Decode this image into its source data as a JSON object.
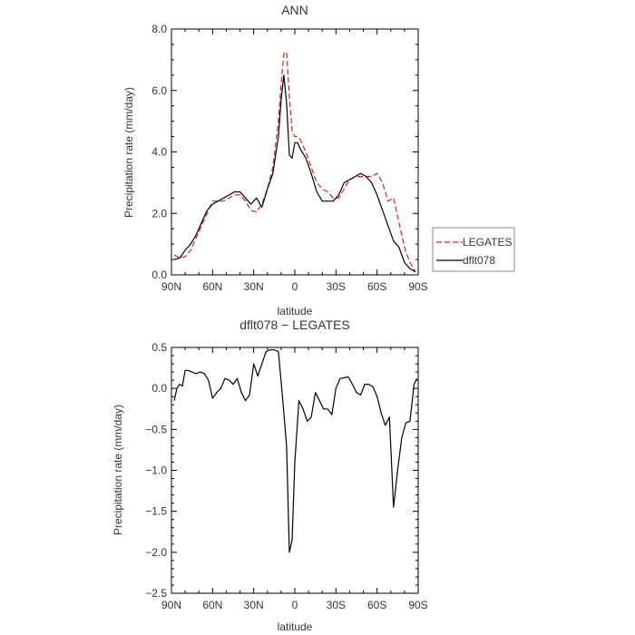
{
  "chart_data": [
    {
      "type": "line",
      "title": "ANN",
      "xlabel": "latitude",
      "ylabel": "Precipitation rate (mm/day)",
      "xlim": [
        90,
        -90
      ],
      "ylim": [
        0,
        8
      ],
      "x_ticks": [
        90,
        60,
        30,
        0,
        -30,
        -60,
        -90
      ],
      "x_tick_labels": [
        "90N",
        "60N",
        "30N",
        "0",
        "30S",
        "60S",
        "90S"
      ],
      "y_ticks": [
        0,
        2,
        4,
        6,
        8
      ],
      "y_tick_labels": [
        "0.0",
        "2.0",
        "4.0",
        "6.0",
        "8.0"
      ],
      "legend_position": "right",
      "series": [
        {
          "name": "LEGATES",
          "style": "dashed",
          "color": "#e02020",
          "x": [
            88,
            84,
            80,
            76,
            72,
            68,
            64,
            60,
            56,
            52,
            48,
            44,
            40,
            36,
            32,
            28,
            24,
            20,
            16,
            12,
            10,
            8,
            6,
            4,
            2,
            0,
            -2,
            -4,
            -8,
            -12,
            -16,
            -20,
            -24,
            -28,
            -32,
            -36,
            -40,
            -44,
            -48,
            -52,
            -56,
            -60,
            -64,
            -68,
            -72,
            -76,
            -80,
            -84,
            -88
          ],
          "values": [
            0.65,
            0.55,
            0.6,
            0.8,
            1.2,
            1.6,
            2.0,
            2.4,
            2.4,
            2.4,
            2.5,
            2.6,
            2.6,
            2.4,
            2.1,
            2.05,
            2.3,
            2.8,
            3.5,
            5.0,
            6.2,
            7.2,
            7.25,
            5.8,
            4.7,
            4.5,
            4.5,
            4.4,
            4.0,
            3.5,
            3.0,
            2.8,
            2.7,
            2.5,
            2.5,
            2.8,
            3.1,
            3.2,
            3.2,
            3.2,
            3.2,
            3.3,
            3.0,
            2.4,
            2.5,
            1.7,
            0.9,
            0.4,
            0.1
          ]
        },
        {
          "name": "dflt078",
          "style": "solid",
          "color": "#000000",
          "x": [
            88,
            84,
            80,
            76,
            72,
            68,
            64,
            60,
            56,
            52,
            48,
            44,
            40,
            36,
            32,
            28,
            24,
            20,
            16,
            12,
            10,
            8,
            6,
            4,
            2,
            0,
            -2,
            -4,
            -8,
            -12,
            -16,
            -20,
            -24,
            -28,
            -32,
            -36,
            -40,
            -44,
            -48,
            -52,
            -56,
            -60,
            -64,
            -68,
            -72,
            -76,
            -80,
            -84,
            -88
          ],
          "values": [
            0.5,
            0.55,
            0.8,
            1.0,
            1.3,
            1.7,
            2.1,
            2.3,
            2.4,
            2.5,
            2.6,
            2.7,
            2.7,
            2.5,
            2.3,
            2.5,
            2.2,
            2.8,
            3.3,
            4.5,
            5.7,
            6.5,
            5.6,
            3.9,
            3.8,
            4.3,
            4.3,
            4.1,
            3.8,
            3.3,
            2.7,
            2.4,
            2.4,
            2.4,
            2.6,
            3.0,
            3.1,
            3.2,
            3.3,
            3.2,
            3.0,
            2.6,
            2.1,
            1.6,
            1.1,
            0.9,
            0.4,
            0.2,
            0.1
          ]
        }
      ]
    },
    {
      "type": "line",
      "title": "dflt078 − LEGATES",
      "xlabel": "latitude",
      "ylabel": "Precipitation rate (mm/day)",
      "xlim": [
        90,
        -90
      ],
      "ylim": [
        -2.5,
        0.5
      ],
      "x_ticks": [
        90,
        60,
        30,
        0,
        -30,
        -60,
        -90
      ],
      "x_tick_labels": [
        "90N",
        "60N",
        "30N",
        "0",
        "30S",
        "60S",
        "90S"
      ],
      "y_ticks": [
        -2.5,
        -2.0,
        -1.5,
        -1.0,
        -0.5,
        0.0,
        0.5
      ],
      "y_tick_labels": [
        "−2.5",
        "−2.0",
        "−1.5",
        "−1.0",
        "−0.5",
        "0.0",
        "0.5"
      ],
      "series": [
        {
          "style": "solid",
          "color": "#000000",
          "x": [
            88,
            86,
            84,
            82,
            80,
            78,
            75,
            72,
            69,
            66,
            63,
            60,
            57,
            54,
            51,
            48,
            45,
            42,
            39,
            36,
            33,
            30,
            27,
            24,
            21,
            18,
            15,
            12,
            9,
            6,
            4,
            2,
            0,
            -3,
            -6,
            -9,
            -12,
            -15,
            -18,
            -21,
            -24,
            -27,
            -30,
            -33,
            -36,
            -39,
            -42,
            -45,
            -48,
            -51,
            -54,
            -57,
            -60,
            -63,
            -66,
            -69,
            -72,
            -75,
            -78,
            -81,
            -84,
            -87,
            -89
          ],
          "values": [
            -0.15,
            0.0,
            0.05,
            0.03,
            0.22,
            0.22,
            0.2,
            0.18,
            0.2,
            0.18,
            0.1,
            -0.12,
            -0.05,
            0.0,
            0.12,
            0.1,
            0.05,
            0.12,
            -0.05,
            -0.15,
            -0.08,
            0.3,
            0.15,
            0.3,
            0.45,
            0.47,
            0.47,
            0.45,
            -0.1,
            -0.7,
            -2.0,
            -1.85,
            -0.9,
            -0.15,
            -0.25,
            -0.4,
            -0.35,
            -0.05,
            -0.15,
            -0.25,
            -0.25,
            -0.32,
            0.0,
            0.12,
            0.13,
            0.14,
            0.05,
            -0.05,
            -0.08,
            0.05,
            0.05,
            0.02,
            -0.1,
            -0.3,
            -0.45,
            -0.35,
            -1.45,
            -1.0,
            -0.6,
            -0.42,
            -0.4,
            0.05,
            0.12
          ]
        }
      ]
    }
  ]
}
